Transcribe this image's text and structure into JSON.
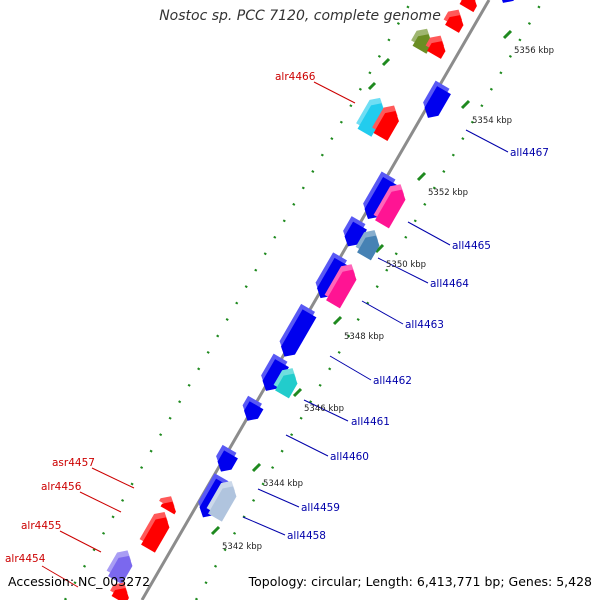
{
  "title": "Nostoc sp. PCC 7120, complete genome",
  "footer": {
    "accession": "Accession: NC_003272",
    "topology": "Topology: circular; Length: 6,413,771 bp; Genes: 5,428"
  },
  "colors": {
    "backbone": "#8c8c8c",
    "forward_label": "#cc0000",
    "reverse_label": "#0000aa",
    "tick": "#1f8a1f",
    "blue": "#0000ee",
    "red": "#ff0000",
    "magenta": "#ff1493",
    "cyan": "#22ccee",
    "teal": "#22cccc",
    "olive": "#6b8e23",
    "steel": "#4682b4",
    "slate": "#7b68ee",
    "silver": "#b0c4de"
  },
  "ruler": [
    {
      "label": "5342 kbp"
    },
    {
      "label": "5344 kbp"
    },
    {
      "label": "5346 kbp"
    },
    {
      "label": "5348 kbp"
    },
    {
      "label": "5350 kbp"
    },
    {
      "label": "5352 kbp"
    },
    {
      "label": "5354 kbp"
    },
    {
      "label": "5356 kbp"
    }
  ],
  "genes_forward": [
    {
      "name": "alr4454"
    },
    {
      "name": "alr4455"
    },
    {
      "name": "alr4456"
    },
    {
      "name": "asr4457"
    },
    {
      "name": "alr4466"
    }
  ],
  "genes_reverse": [
    {
      "name": "all4458"
    },
    {
      "name": "all4459"
    },
    {
      "name": "all4460"
    },
    {
      "name": "all4461"
    },
    {
      "name": "all4462"
    },
    {
      "name": "all4463"
    },
    {
      "name": "all4464"
    },
    {
      "name": "all4465"
    },
    {
      "name": "all4467"
    }
  ]
}
